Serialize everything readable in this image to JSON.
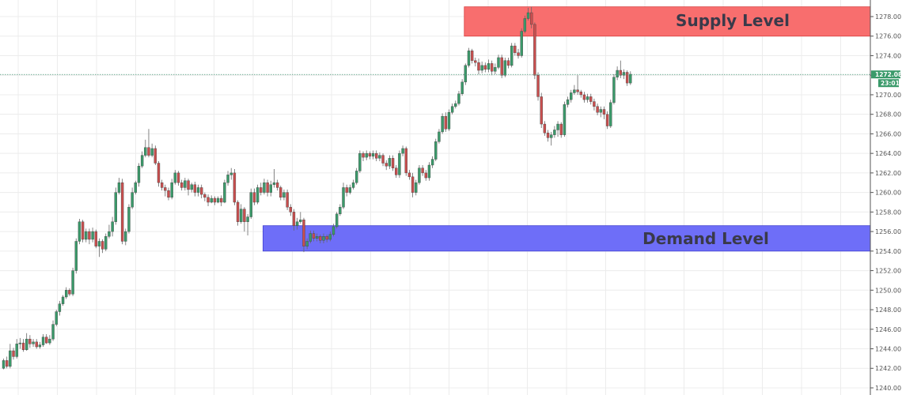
{
  "chart_data": {
    "type": "candlestick",
    "y_axis": {
      "min": 1240,
      "max": 1279.5,
      "ticks": [
        "1240.00",
        "1242.00",
        "1244.00",
        "1246.00",
        "1248.00",
        "1250.00",
        "1252.00",
        "1254.00",
        "1256.00",
        "1258.00",
        "1260.00",
        "1262.00",
        "1264.00",
        "1266.00",
        "1268.00",
        "1270.00",
        "1272.00",
        "1274.00",
        "1276.00",
        "1278.00"
      ],
      "side": "right"
    },
    "grid": true,
    "current_price": {
      "label": "1272.08",
      "value": 1272.08,
      "countdown": "23:01"
    },
    "zones": [
      {
        "name": "supply",
        "label": "Supply Level",
        "low": 1276.0,
        "high": 1279.0,
        "start_index": 140,
        "color": "#f86e6e"
      },
      {
        "name": "demand",
        "label": "Demand Level",
        "low": 1254.0,
        "high": 1256.6,
        "start_index": 79,
        "color": "#6e6ef8"
      }
    ],
    "colors": {
      "up": "#3a9a6a",
      "down": "#c94e4e",
      "wick": "#666666",
      "grid": "#ececec",
      "price_line": "#4a9a7a"
    },
    "candles": [
      [
        1242.0,
        1242.8,
        1241.9,
        1243.0
      ],
      [
        1242.8,
        1242.2,
        1242.0,
        1243.2
      ],
      [
        1242.2,
        1243.8,
        1242.0,
        1244.5
      ],
      [
        1243.8,
        1243.2,
        1242.9,
        1244.1
      ],
      [
        1243.2,
        1244.5,
        1243.0,
        1245.0
      ],
      [
        1244.5,
        1244.6,
        1244.0,
        1245.1
      ],
      [
        1244.6,
        1243.9,
        1243.7,
        1245.0
      ],
      [
        1243.9,
        1245.0,
        1243.8,
        1245.6
      ],
      [
        1245.0,
        1244.5,
        1244.1,
        1245.4
      ],
      [
        1244.5,
        1244.7,
        1244.2,
        1245.0
      ],
      [
        1244.7,
        1244.2,
        1244.0,
        1245.0
      ],
      [
        1244.2,
        1244.4,
        1244.0,
        1244.7
      ],
      [
        1244.4,
        1245.2,
        1244.2,
        1245.5
      ],
      [
        1245.2,
        1244.6,
        1244.5,
        1245.5
      ],
      [
        1244.6,
        1245.0,
        1244.4,
        1245.4
      ],
      [
        1245.0,
        1246.5,
        1244.8,
        1246.9
      ],
      [
        1246.5,
        1247.8,
        1246.3,
        1248.0
      ],
      [
        1247.8,
        1248.6,
        1247.4,
        1248.9
      ],
      [
        1248.6,
        1249.3,
        1248.4,
        1249.5
      ],
      [
        1249.3,
        1250.0,
        1249.1,
        1250.3
      ],
      [
        1250.0,
        1249.6,
        1249.4,
        1250.2
      ],
      [
        1249.6,
        1252.0,
        1249.4,
        1252.3
      ],
      [
        1252.0,
        1255.0,
        1251.7,
        1255.3
      ],
      [
        1255.0,
        1257.0,
        1254.7,
        1257.3
      ],
      [
        1257.0,
        1255.2,
        1254.9,
        1257.2
      ],
      [
        1255.2,
        1256.0,
        1254.9,
        1256.3
      ],
      [
        1256.0,
        1255.2,
        1254.7,
        1256.3
      ],
      [
        1255.2,
        1256.0,
        1254.9,
        1256.4
      ],
      [
        1256.0,
        1254.5,
        1254.3,
        1256.2
      ],
      [
        1254.5,
        1255.0,
        1253.4,
        1255.3
      ],
      [
        1255.0,
        1254.2,
        1253.8,
        1255.2
      ],
      [
        1254.2,
        1255.5,
        1254.0,
        1255.8
      ],
      [
        1255.5,
        1256.0,
        1255.3,
        1256.7
      ],
      [
        1256.0,
        1257.0,
        1255.5,
        1257.5
      ],
      [
        1257.0,
        1260.0,
        1256.7,
        1260.5
      ],
      [
        1260.0,
        1261.0,
        1259.8,
        1261.5
      ],
      [
        1261.0,
        1255.0,
        1254.7,
        1261.4
      ],
      [
        1255.0,
        1256.0,
        1254.6,
        1256.3
      ],
      [
        1256.0,
        1258.5,
        1255.8,
        1258.8
      ],
      [
        1258.5,
        1260.0,
        1258.3,
        1260.5
      ],
      [
        1260.0,
        1261.0,
        1259.8,
        1261.2
      ],
      [
        1261.0,
        1262.7,
        1260.6,
        1263.0
      ],
      [
        1262.7,
        1263.8,
        1262.5,
        1264.2
      ],
      [
        1263.8,
        1264.6,
        1263.6,
        1265.4
      ],
      [
        1264.6,
        1263.8,
        1263.6,
        1266.5
      ],
      [
        1263.8,
        1264.5,
        1263.6,
        1265.0
      ],
      [
        1264.5,
        1263.0,
        1262.8,
        1264.8
      ],
      [
        1263.0,
        1261.0,
        1260.6,
        1263.2
      ],
      [
        1261.0,
        1260.5,
        1260.2,
        1261.3
      ],
      [
        1260.5,
        1260.2,
        1259.6,
        1260.8
      ],
      [
        1260.2,
        1259.5,
        1259.2,
        1260.5
      ],
      [
        1259.5,
        1261.0,
        1259.3,
        1261.4
      ],
      [
        1261.0,
        1262.0,
        1260.8,
        1262.3
      ],
      [
        1262.0,
        1261.0,
        1260.7,
        1262.2
      ],
      [
        1261.0,
        1260.5,
        1260.2,
        1261.3
      ],
      [
        1260.5,
        1261.2,
        1260.2,
        1261.5
      ],
      [
        1261.2,
        1260.3,
        1259.7,
        1261.4
      ],
      [
        1260.3,
        1260.8,
        1260.0,
        1261.0
      ],
      [
        1260.8,
        1260.0,
        1259.6,
        1261.1
      ],
      [
        1260.0,
        1260.5,
        1259.6,
        1260.8
      ],
      [
        1260.5,
        1259.8,
        1259.4,
        1260.8
      ],
      [
        1259.8,
        1259.5,
        1259.1,
        1260.0
      ],
      [
        1259.5,
        1259.0,
        1258.6,
        1259.8
      ],
      [
        1259.0,
        1259.4,
        1258.9,
        1259.7
      ],
      [
        1259.4,
        1259.0,
        1258.7,
        1259.6
      ],
      [
        1259.0,
        1259.4,
        1258.9,
        1259.6
      ],
      [
        1259.4,
        1259.0,
        1258.6,
        1259.7
      ],
      [
        1259.0,
        1261.0,
        1258.9,
        1261.3
      ],
      [
        1261.0,
        1261.8,
        1260.7,
        1262.2
      ],
      [
        1261.8,
        1262.0,
        1261.3,
        1262.5
      ],
      [
        1262.0,
        1259.0,
        1258.7,
        1262.4
      ],
      [
        1259.0,
        1257.0,
        1256.6,
        1259.2
      ],
      [
        1257.0,
        1258.3,
        1256.8,
        1258.8
      ],
      [
        1258.3,
        1257.0,
        1256.0,
        1258.5
      ],
      [
        1257.0,
        1257.5,
        1255.6,
        1257.8
      ],
      [
        1257.5,
        1260.0,
        1257.3,
        1260.4
      ],
      [
        1260.0,
        1259.0,
        1258.7,
        1260.4
      ],
      [
        1259.0,
        1260.5,
        1258.8,
        1260.8
      ],
      [
        1260.5,
        1260.0,
        1259.7,
        1261.0
      ],
      [
        1260.0,
        1261.0,
        1259.8,
        1261.4
      ],
      [
        1261.0,
        1260.0,
        1259.6,
        1261.3
      ],
      [
        1260.0,
        1260.8,
        1259.6,
        1261.2
      ],
      [
        1260.8,
        1261.0,
        1260.5,
        1262.4
      ],
      [
        1261.0,
        1260.5,
        1260.2,
        1261.3
      ],
      [
        1260.5,
        1259.5,
        1259.2,
        1260.7
      ],
      [
        1259.5,
        1260.0,
        1259.2,
        1260.3
      ],
      [
        1260.0,
        1258.5,
        1258.2,
        1260.3
      ],
      [
        1258.5,
        1258.0,
        1257.6,
        1258.8
      ],
      [
        1258.0,
        1256.6,
        1256.1,
        1258.3
      ],
      [
        1256.6,
        1257.0,
        1256.2,
        1257.4
      ],
      [
        1257.0,
        1257.2,
        1256.8,
        1258.0
      ],
      [
        1257.2,
        1254.5,
        1253.9,
        1257.4
      ],
      [
        1254.5,
        1255.0,
        1254.2,
        1255.3
      ],
      [
        1255.0,
        1255.8,
        1254.8,
        1256.1
      ],
      [
        1255.8,
        1255.3,
        1255.0,
        1256.1
      ],
      [
        1255.3,
        1255.5,
        1255.0,
        1255.8
      ],
      [
        1255.5,
        1255.1,
        1254.8,
        1255.7
      ],
      [
        1255.1,
        1255.5,
        1254.8,
        1255.8
      ],
      [
        1255.5,
        1255.2,
        1254.9,
        1255.7
      ],
      [
        1255.2,
        1255.7,
        1255.0,
        1256.0
      ],
      [
        1255.7,
        1256.5,
        1255.5,
        1256.8
      ],
      [
        1256.5,
        1257.8,
        1256.3,
        1258.0
      ],
      [
        1257.8,
        1258.5,
        1257.6,
        1258.8
      ],
      [
        1258.5,
        1260.5,
        1258.3,
        1261.0
      ],
      [
        1260.5,
        1260.0,
        1259.6,
        1260.8
      ],
      [
        1260.0,
        1260.5,
        1259.8,
        1260.8
      ],
      [
        1260.5,
        1261.0,
        1260.3,
        1261.3
      ],
      [
        1261.0,
        1262.2,
        1260.8,
        1262.5
      ],
      [
        1262.2,
        1264.0,
        1262.0,
        1264.3
      ],
      [
        1264.0,
        1263.6,
        1263.2,
        1264.2
      ],
      [
        1263.6,
        1264.0,
        1263.3,
        1264.3
      ],
      [
        1264.0,
        1263.7,
        1263.4,
        1264.2
      ],
      [
        1263.7,
        1264.0,
        1263.4,
        1264.3
      ],
      [
        1264.0,
        1263.5,
        1263.2,
        1264.3
      ],
      [
        1263.5,
        1263.8,
        1263.2,
        1264.1
      ],
      [
        1263.8,
        1263.0,
        1262.7,
        1264.0
      ],
      [
        1263.0,
        1262.7,
        1262.3,
        1263.3
      ],
      [
        1262.7,
        1263.5,
        1262.4,
        1263.8
      ],
      [
        1263.5,
        1262.5,
        1262.2,
        1263.8
      ],
      [
        1262.5,
        1261.8,
        1261.5,
        1262.8
      ],
      [
        1261.8,
        1264.0,
        1261.5,
        1264.3
      ],
      [
        1264.0,
        1264.5,
        1263.7,
        1264.8
      ],
      [
        1264.5,
        1262.0,
        1261.7,
        1264.7
      ],
      [
        1262.0,
        1261.6,
        1261.3,
        1262.3
      ],
      [
        1261.6,
        1260.0,
        1259.5,
        1262.0
      ],
      [
        1260.0,
        1261.0,
        1259.7,
        1261.3
      ],
      [
        1261.0,
        1262.5,
        1260.8,
        1262.8
      ],
      [
        1262.5,
        1262.0,
        1261.7,
        1262.8
      ],
      [
        1262.0,
        1261.5,
        1261.2,
        1262.3
      ],
      [
        1261.5,
        1262.8,
        1261.2,
        1263.1
      ],
      [
        1262.8,
        1263.4,
        1262.5,
        1263.7
      ],
      [
        1263.4,
        1265.2,
        1263.2,
        1265.5
      ],
      [
        1265.2,
        1266.2,
        1265.0,
        1266.5
      ],
      [
        1266.2,
        1267.8,
        1266.0,
        1268.1
      ],
      [
        1267.8,
        1266.5,
        1266.2,
        1268.2
      ],
      [
        1266.5,
        1268.2,
        1266.3,
        1268.5
      ],
      [
        1268.2,
        1268.8,
        1268.0,
        1269.1
      ],
      [
        1268.8,
        1269.1,
        1268.6,
        1269.4
      ],
      [
        1269.1,
        1270.1,
        1268.9,
        1270.4
      ],
      [
        1270.1,
        1271.3,
        1269.9,
        1271.6
      ],
      [
        1271.3,
        1273.0,
        1271.0,
        1273.2
      ],
      [
        1273.0,
        1274.5,
        1272.8,
        1274.8
      ],
      [
        1274.5,
        1273.5,
        1273.2,
        1274.7
      ],
      [
        1273.5,
        1273.3,
        1272.9,
        1273.8
      ],
      [
        1273.3,
        1272.5,
        1272.1,
        1273.7
      ],
      [
        1272.5,
        1273.0,
        1272.2,
        1273.4
      ],
      [
        1273.0,
        1272.6,
        1272.3,
        1273.3
      ],
      [
        1272.6,
        1273.2,
        1272.3,
        1273.6
      ],
      [
        1273.2,
        1272.4,
        1272.0,
        1273.5
      ],
      [
        1272.4,
        1272.8,
        1272.1,
        1273.2
      ],
      [
        1272.8,
        1273.8,
        1272.6,
        1274.1
      ],
      [
        1273.8,
        1272.0,
        1271.7,
        1274.1
      ],
      [
        1272.0,
        1273.5,
        1271.8,
        1273.8
      ],
      [
        1273.5,
        1273.0,
        1272.7,
        1273.8
      ],
      [
        1273.0,
        1275.0,
        1272.8,
        1275.3
      ],
      [
        1275.0,
        1274.3,
        1274.0,
        1275.3
      ],
      [
        1274.3,
        1274.0,
        1273.7,
        1274.7
      ],
      [
        1274.0,
        1276.5,
        1273.8,
        1276.8
      ],
      [
        1276.5,
        1277.8,
        1276.3,
        1278.1
      ],
      [
        1277.8,
        1278.4,
        1277.6,
        1278.9
      ],
      [
        1278.4,
        1277.2,
        1276.8,
        1279.0
      ],
      [
        1277.2,
        1272.0,
        1271.6,
        1277.4
      ],
      [
        1272.0,
        1269.8,
        1269.4,
        1272.3
      ],
      [
        1269.8,
        1267.0,
        1266.6,
        1270.2
      ],
      [
        1267.0,
        1266.1,
        1265.8,
        1267.3
      ],
      [
        1266.1,
        1265.6,
        1265.2,
        1266.4
      ],
      [
        1265.6,
        1265.9,
        1264.8,
        1266.2
      ],
      [
        1265.9,
        1266.4,
        1265.6,
        1266.8
      ],
      [
        1266.4,
        1267.0,
        1265.7,
        1267.3
      ],
      [
        1267.0,
        1265.9,
        1265.6,
        1267.2
      ],
      [
        1265.9,
        1269.0,
        1265.7,
        1269.3
      ],
      [
        1269.0,
        1269.5,
        1268.7,
        1269.8
      ],
      [
        1269.5,
        1270.2,
        1269.2,
        1270.5
      ],
      [
        1270.2,
        1270.5,
        1270.0,
        1271.0
      ],
      [
        1270.5,
        1270.3,
        1270.0,
        1272.0
      ],
      [
        1270.3,
        1270.0,
        1269.7,
        1270.5
      ],
      [
        1270.0,
        1269.5,
        1269.2,
        1270.3
      ],
      [
        1269.5,
        1269.8,
        1269.2,
        1270.1
      ],
      [
        1269.8,
        1269.3,
        1269.0,
        1270.1
      ],
      [
        1269.3,
        1268.8,
        1268.4,
        1269.6
      ],
      [
        1268.8,
        1268.2,
        1267.9,
        1269.1
      ],
      [
        1268.2,
        1268.5,
        1267.7,
        1268.8
      ],
      [
        1268.5,
        1268.0,
        1267.5,
        1268.8
      ],
      [
        1268.0,
        1266.8,
        1266.5,
        1268.3
      ],
      [
        1266.8,
        1269.2,
        1266.6,
        1269.5
      ],
      [
        1269.2,
        1271.8,
        1269.0,
        1272.1
      ],
      [
        1271.8,
        1272.5,
        1271.5,
        1272.9
      ],
      [
        1272.5,
        1272.0,
        1271.7,
        1273.5
      ],
      [
        1272.0,
        1272.3,
        1271.6,
        1272.6
      ],
      [
        1272.3,
        1271.2,
        1270.9,
        1272.5
      ],
      [
        1271.2,
        1272.1,
        1271.0,
        1272.4
      ]
    ]
  }
}
